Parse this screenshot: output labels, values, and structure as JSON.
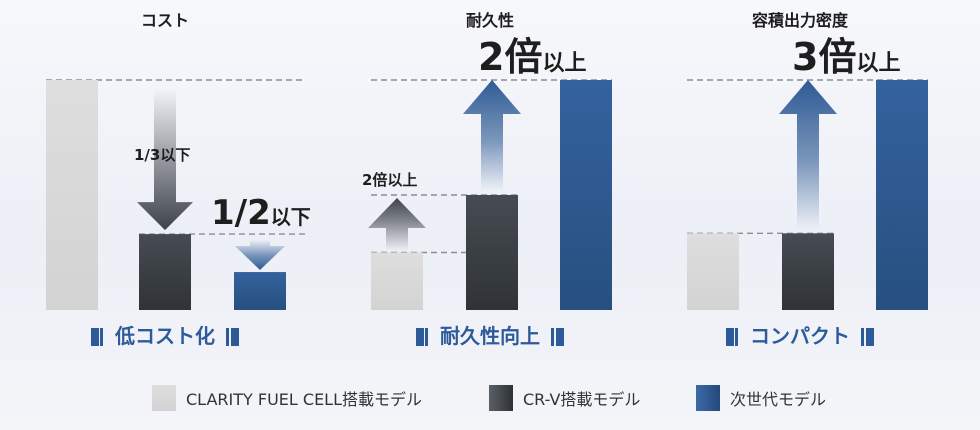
{
  "colors": {
    "clarity": "#dcdcdc",
    "crv": "#3b4046",
    "next": "#2e5a94",
    "accent": "#2d5b9a",
    "text": "#1e1e1e"
  },
  "legend": [
    {
      "label": "CLARITY FUEL CELL搭載モデル",
      "series": "clarity"
    },
    {
      "label": "CR-V搭載モデル",
      "series": "crv"
    },
    {
      "label": "次世代モデル",
      "series": "next"
    }
  ],
  "chart_data": [
    {
      "type": "bar",
      "title": "コスト",
      "caption": "低コスト化",
      "categories": [
        "CLARITY FUEL CELL搭載モデル",
        "CR-V搭載モデル",
        "次世代モデル"
      ],
      "values": [
        1.0,
        0.33,
        0.165
      ],
      "ylim": [
        0,
        1
      ],
      "annotations": [
        {
          "text": "1/3以下",
          "size": "small"
        },
        {
          "big": "1/2",
          "suffix": "以下"
        }
      ]
    },
    {
      "type": "bar",
      "title": "耐久性",
      "caption": "耐久性向上",
      "categories": [
        "CLARITY FUEL CELL搭載モデル",
        "CR-V搭載モデル",
        "次世代モデル"
      ],
      "values": [
        1,
        2,
        4
      ],
      "ylim": [
        0,
        4
      ],
      "annotations": [
        {
          "text": "2倍以上",
          "size": "small"
        },
        {
          "big": "2倍",
          "suffix": "以上"
        }
      ]
    },
    {
      "type": "bar",
      "title": "容積出力密度",
      "caption": "コンパクト",
      "categories": [
        "CLARITY FUEL CELL搭載モデル",
        "CR-V搭載モデル",
        "次世代モデル"
      ],
      "values": [
        1,
        1,
        3
      ],
      "ylim": [
        0,
        3
      ],
      "annotations": [
        {
          "big": "3倍",
          "suffix": "以上"
        }
      ]
    }
  ]
}
